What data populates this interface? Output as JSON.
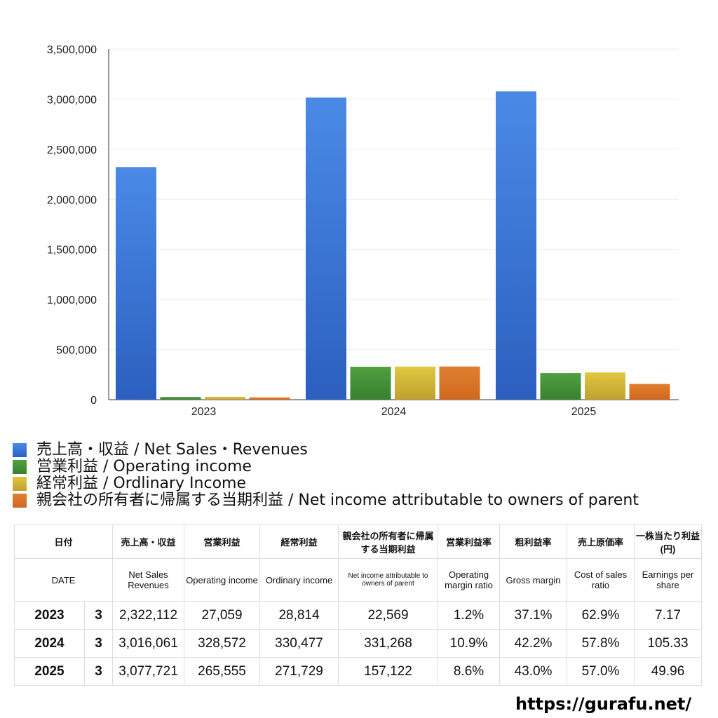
{
  "chart_data": {
    "type": "bar",
    "categories": [
      "2023",
      "2024",
      "2025"
    ],
    "ylim": [
      0,
      3500000
    ],
    "yticks": [
      "0",
      "500,000",
      "1,000,000",
      "1,500,000",
      "2,000,000",
      "2,500,000",
      "3,000,000",
      "3,500,000"
    ],
    "grid": true,
    "legend_placement": "bottom",
    "series": [
      {
        "name": "売上高・収益 / Net Sales・Revenues",
        "color": "#4a8ae6",
        "values": [
          2322112,
          3016061,
          3077721
        ]
      },
      {
        "name": "営業利益 / Operating income",
        "color": "#4fa040",
        "values": [
          27059,
          328572,
          265555
        ]
      },
      {
        "name": "経常利益 / Ordlinary Income",
        "color": "#e0c840",
        "values": [
          28814,
          330477,
          271729
        ]
      },
      {
        "name": "親会社の所有者に帰属する当期利益 / Net income attributable to owners of parent",
        "color": "#e08030",
        "values": [
          22569,
          331268,
          157122
        ]
      }
    ]
  },
  "table": {
    "header_jp": [
      "日付",
      "売上高・収益",
      "営業利益",
      "経常利益",
      "親会社の所有者に帰属する当期利益",
      "営業利益率",
      "粗利益率",
      "売上原価率",
      "一株当たり利益(円)"
    ],
    "header_en": [
      "DATE",
      "Net Sales Revenues",
      "Operating income",
      "Ordinary income",
      "Net income attributable to owners of parent",
      "Operating margin ratio",
      "Gross margin",
      "Cost of sales ratio",
      "Earnings per share"
    ],
    "rows": [
      [
        "2023",
        "3",
        "2,322,112",
        "27,059",
        "28,814",
        "22,569",
        "1.2%",
        "37.1%",
        "62.9%",
        "7.17"
      ],
      [
        "2024",
        "3",
        "3,016,061",
        "328,572",
        "330,477",
        "331,268",
        "10.9%",
        "42.2%",
        "57.8%",
        "105.33"
      ],
      [
        "2025",
        "3",
        "3,077,721",
        "265,555",
        "271,729",
        "157,122",
        "8.6%",
        "43.0%",
        "57.0%",
        "49.96"
      ]
    ]
  },
  "footer": {
    "url": "https://gurafu.net/"
  }
}
